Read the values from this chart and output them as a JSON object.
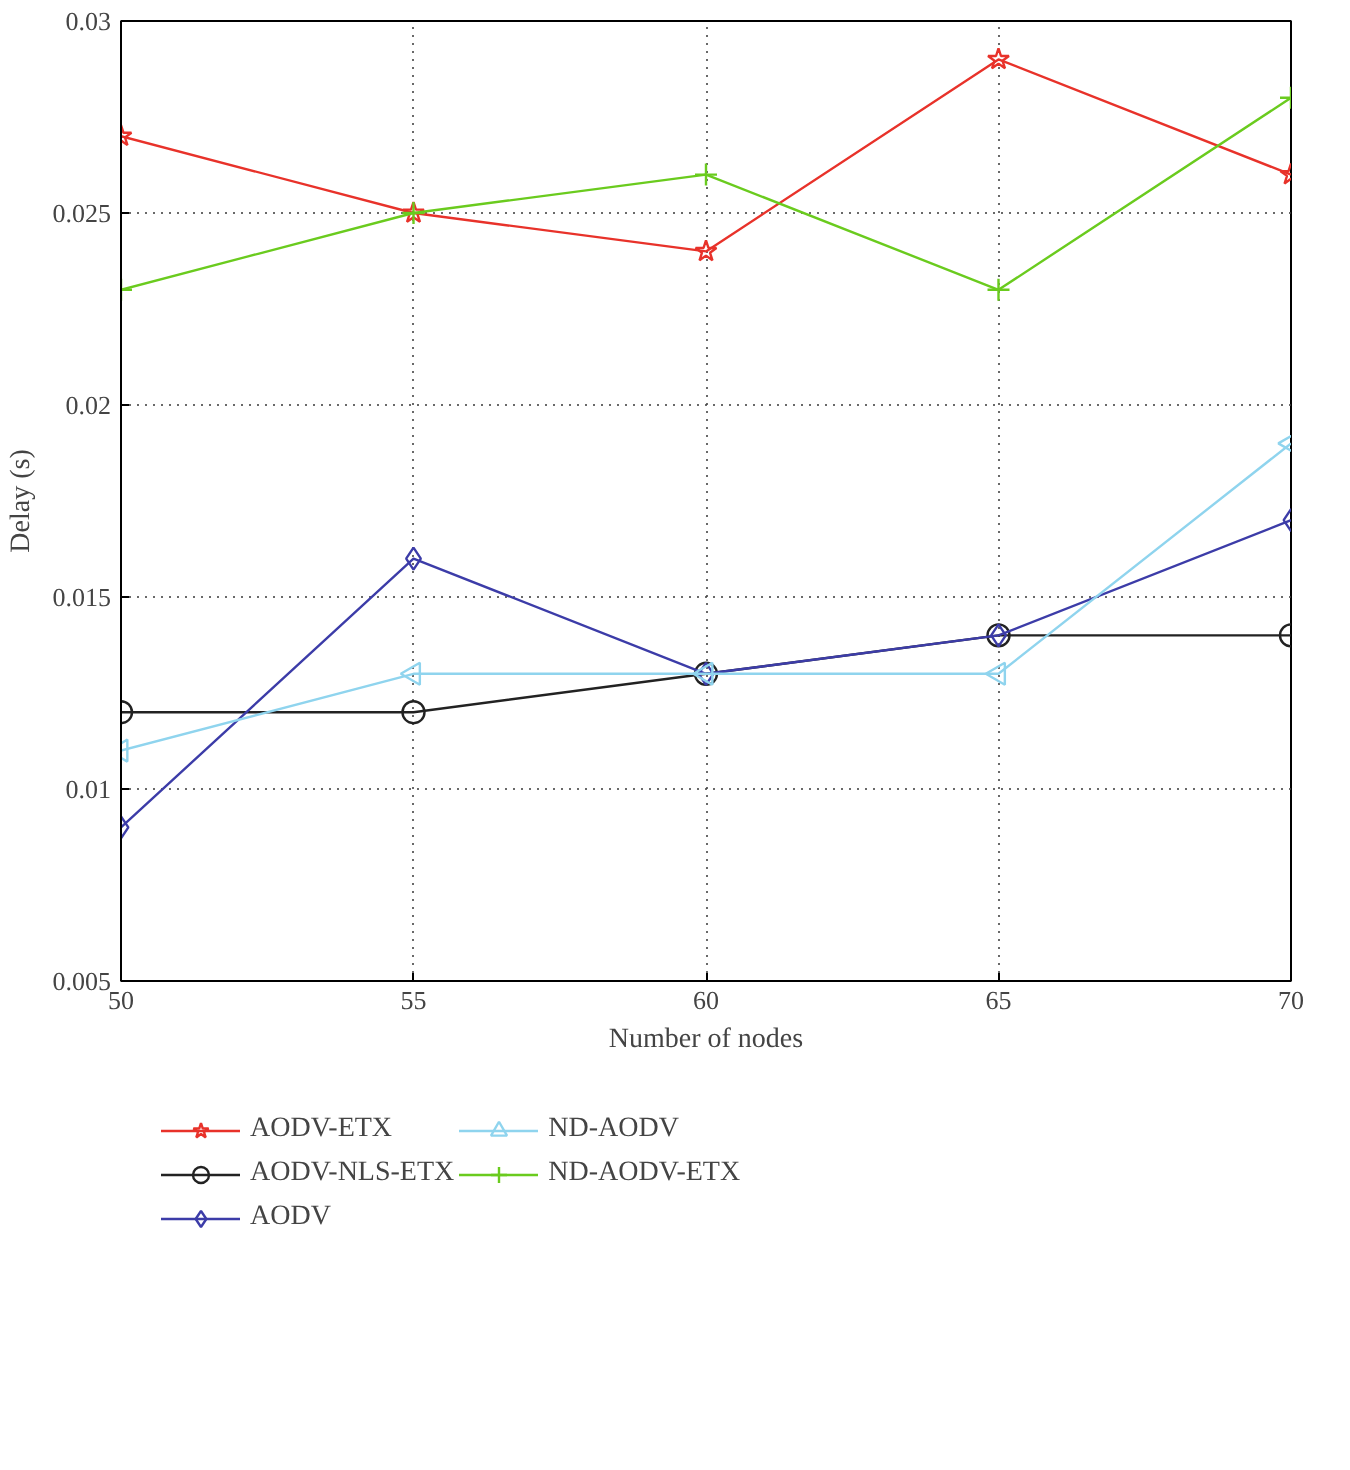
{
  "chart_data": {
    "type": "line",
    "xlabel": "Number of nodes",
    "ylabel": "Delay (s)",
    "x": [
      50,
      55,
      60,
      65,
      70
    ],
    "xlim": [
      50,
      70
    ],
    "xticks": [
      50,
      55,
      60,
      65,
      70
    ],
    "ylim": [
      0.005,
      0.03
    ],
    "yticks": [
      0.005,
      0.01,
      0.015,
      0.02,
      0.025,
      0.03
    ],
    "grid": true,
    "legend": "bottom",
    "line_style": "solid",
    "series": [
      {
        "name": "AODV-ETX",
        "color": "#e8322a",
        "marker": "star",
        "values": [
          0.027,
          0.025,
          0.024,
          0.029,
          0.026
        ]
      },
      {
        "name": "AODV-NLS-ETX",
        "color": "#222222",
        "marker": "circle",
        "values": [
          0.012,
          0.012,
          0.013,
          0.014,
          0.014
        ]
      },
      {
        "name": "AODV",
        "color": "#3c3ca8",
        "marker": "diamond",
        "values": [
          0.009,
          0.016,
          0.013,
          0.014,
          0.017
        ]
      },
      {
        "name": "ND-AODV",
        "color": "#8fd4ee",
        "marker": "triangle",
        "values": [
          0.011,
          0.013,
          0.013,
          0.013,
          0.019
        ]
      },
      {
        "name": "ND-AODV-ETX",
        "color": "#6acb1e",
        "marker": "cross",
        "values": [
          0.023,
          0.025,
          0.026,
          0.023,
          0.028
        ]
      }
    ]
  }
}
